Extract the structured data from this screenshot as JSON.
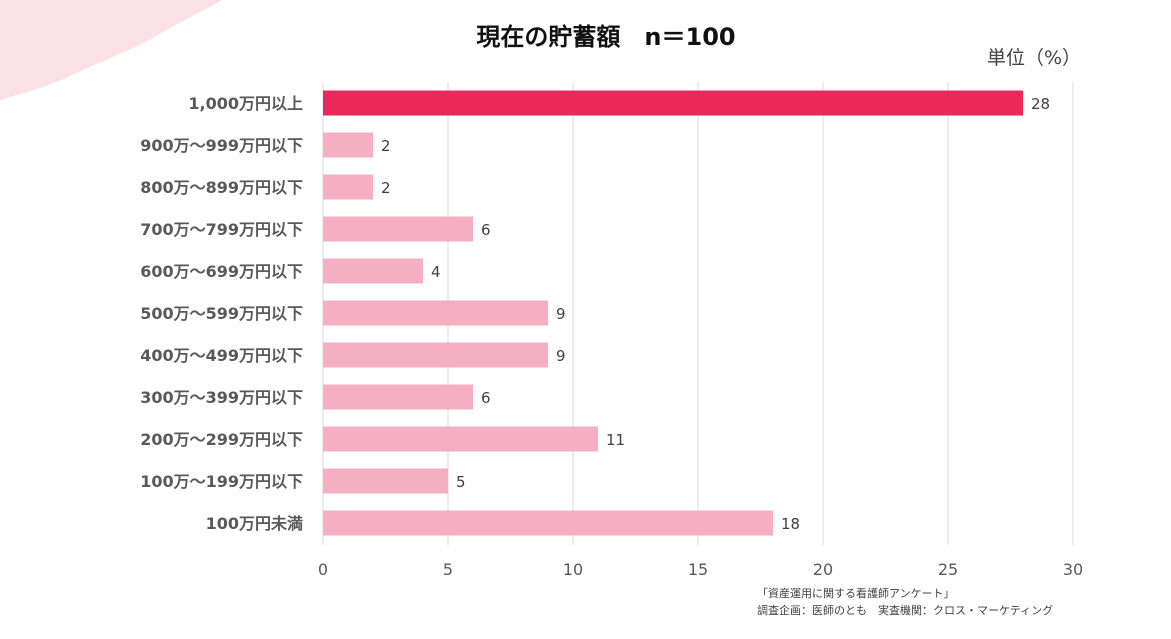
{
  "chart_data": {
    "type": "bar",
    "orientation": "horizontal",
    "title": "現在の貯蓄額　n＝100",
    "unit_label": "単位（%）",
    "categories": [
      "1,000万円以上",
      "900万～999万円以下",
      "800万～899万円以下",
      "700万～799万円以下",
      "600万～699万円以下",
      "500万～599万円以下",
      "400万～499万円以下",
      "300万～399万円以下",
      "200万～299万円以下",
      "100万～199万円以下",
      "100万円未満"
    ],
    "values": [
      28,
      2,
      2,
      6,
      4,
      9,
      9,
      6,
      11,
      5,
      18
    ],
    "xlim": [
      0,
      30
    ],
    "x_ticks": [
      0,
      5,
      10,
      15,
      20,
      25,
      30
    ],
    "grid": true,
    "colors": {
      "highlight": "#e8295a",
      "bar": "#f5aec2",
      "decoration": "#fbe0e7"
    },
    "source_lines": [
      "「資産運用に関する看護師アンケート」",
      "調査企画：医師のとも　実査機関：クロス・マーケティング"
    ]
  }
}
